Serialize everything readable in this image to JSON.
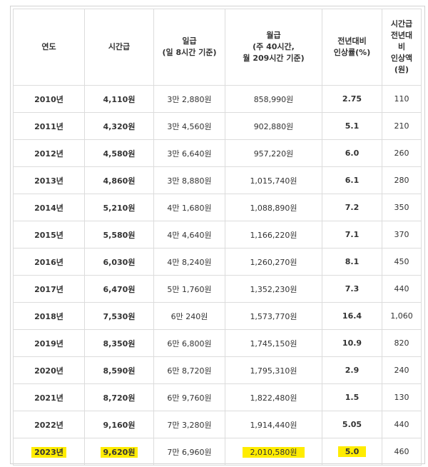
{
  "headers": [
    "연도",
    "시간급",
    "일급\n(일 8시간 기준)",
    "월급\n(주 40시간,\n월 209시간 기준)",
    "전년대비\n인상률(%)",
    "시간급\n전년대\n비\n인상액\n(원)"
  ],
  "rows": [
    {
      "year": "2010년",
      "hourly": "4,110원",
      "daily": "3만 2,880원",
      "monthly": "858,990원",
      "rate": "2.75",
      "increase": "110"
    },
    {
      "year": "2011년",
      "hourly": "4,320원",
      "daily": "3만 4,560원",
      "monthly": "902,880원",
      "rate": "5.1",
      "increase": "210"
    },
    {
      "year": "2012년",
      "hourly": "4,580원",
      "daily": "3만 6,640원",
      "monthly": "957,220원",
      "rate": "6.0",
      "increase": "260"
    },
    {
      "year": "2013년",
      "hourly": "4,860원",
      "daily": "3만 8,880원",
      "monthly": "1,015,740원",
      "rate": "6.1",
      "increase": "280"
    },
    {
      "year": "2014년",
      "hourly": "5,210원",
      "daily": "4만 1,680원",
      "monthly": "1,088,890원",
      "rate": "7.2",
      "increase": "350"
    },
    {
      "year": "2015년",
      "hourly": "5,580원",
      "daily": "4만 4,640원",
      "monthly": "1,166,220원",
      "rate": "7.1",
      "increase": "370"
    },
    {
      "year": "2016년",
      "hourly": "6,030원",
      "daily": "4만 8,240원",
      "monthly": "1,260,270원",
      "rate": "8.1",
      "increase": "450"
    },
    {
      "year": "2017년",
      "hourly": "6,470원",
      "daily": "5만 1,760원",
      "monthly": "1,352,230원",
      "rate": "7.3",
      "increase": "440"
    },
    {
      "year": "2018년",
      "hourly": "7,530원",
      "daily": "6만 240원",
      "monthly": "1,573,770원",
      "rate": "16.4",
      "increase": "1,060"
    },
    {
      "year": "2019년",
      "hourly": "8,350원",
      "daily": "6만 6,800원",
      "monthly": "1,745,150원",
      "rate": "10.9",
      "increase": "820"
    },
    {
      "year": "2020년",
      "hourly": "8,590원",
      "daily": "6만 8,720원",
      "monthly": "1,795,310원",
      "rate": "2.9",
      "increase": "240"
    },
    {
      "year": "2021년",
      "hourly": "8,720원",
      "daily": "6만 9,760원",
      "monthly": "1,822,480원",
      "rate": "1.5",
      "increase": "130"
    },
    {
      "year": "2022년",
      "hourly": "9,160원",
      "daily": "7만 3,280원",
      "monthly": "1,914,440원",
      "rate": "5.05",
      "increase": "440"
    },
    {
      "year": "2023년",
      "hourly": "9,620원",
      "daily": "7만 6,960원",
      "monthly": "2,010,580원",
      "rate": "5.0",
      "increase": "460"
    }
  ],
  "highlight_color": "#ffec00"
}
